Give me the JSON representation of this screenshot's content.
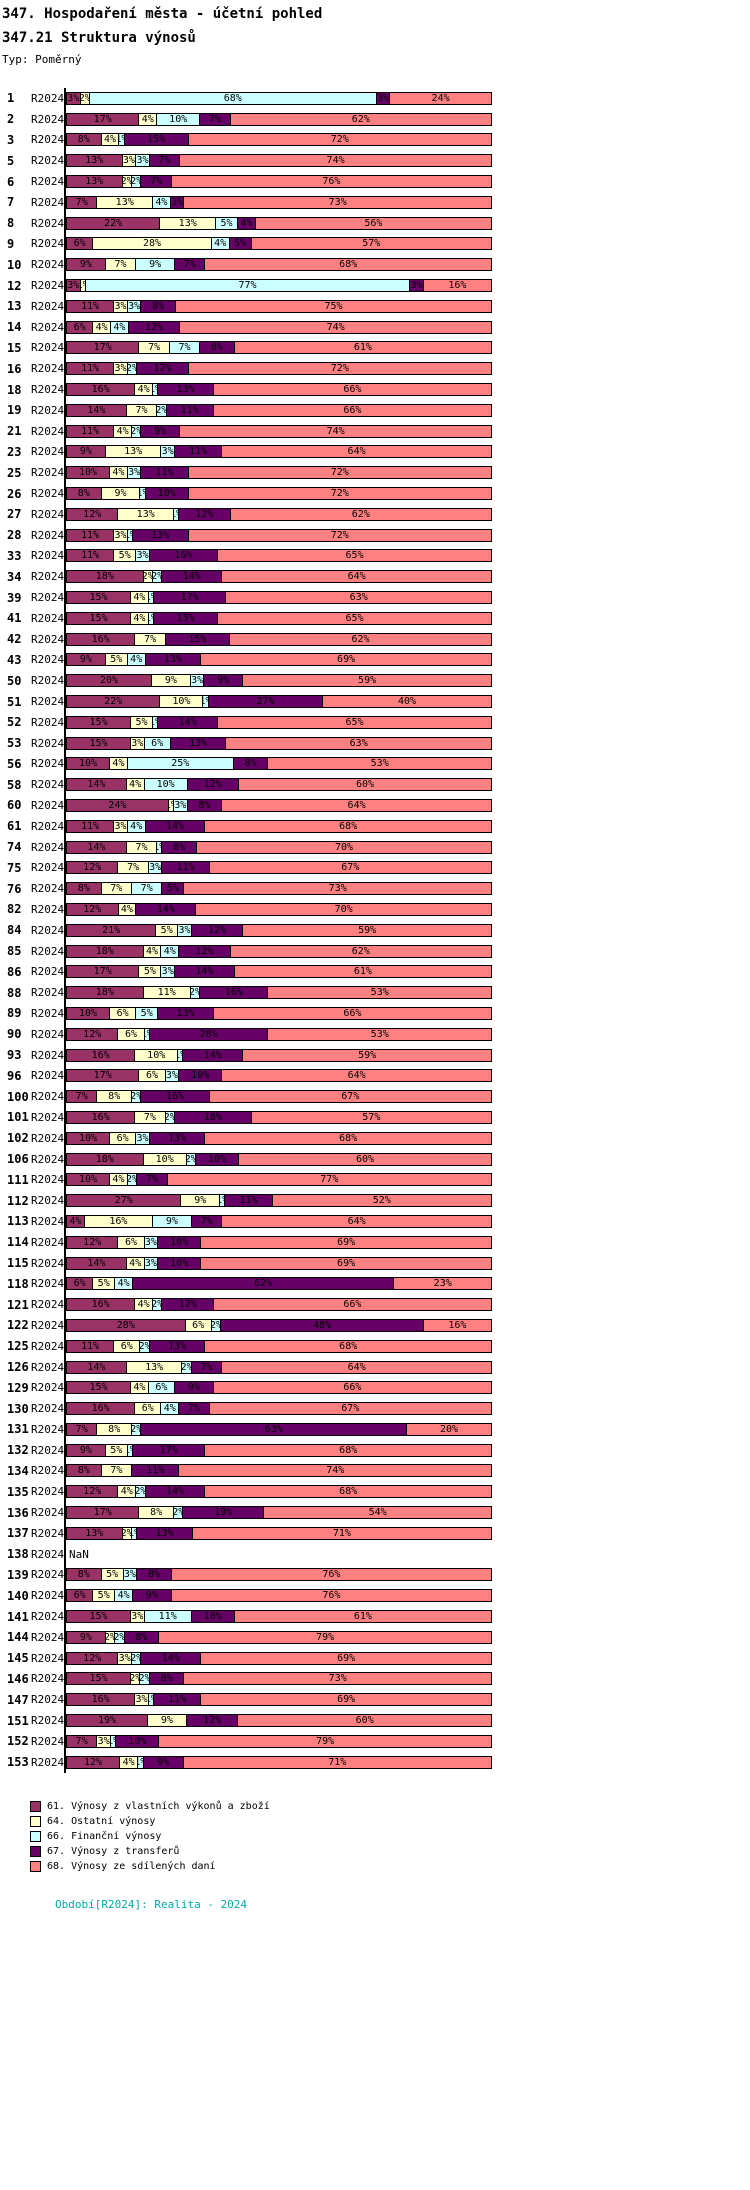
{
  "title": "347. Hospodaření města - účetní pohled",
  "subtitle": "347.21 Struktura výnosů",
  "type_label": "Typ: Poměrný",
  "footer": "Období[R2024]: Realita - 2024",
  "nan_label": "NaN",
  "chart_data": {
    "type": "bar",
    "orientation": "horizontal-stacked",
    "unit": "%",
    "period": "R2024",
    "grid": false,
    "legend_position": "bottom-left",
    "legend": [
      {
        "name": "61",
        "label": "61. Výnosy z vlastních výkonů a zboží",
        "color": "#993366"
      },
      {
        "name": "64",
        "label": "64. Ostatní výnosy",
        "color": "#FFFFCC"
      },
      {
        "name": "66",
        "label": "66. Finanční výnosy",
        "color": "#CCFFFF"
      },
      {
        "name": "67",
        "label": "67. Výnosy z transferů",
        "color": "#660066"
      },
      {
        "name": "68",
        "label": "68. Výnosy ze sdílených daní",
        "color": "#FF8080"
      }
    ],
    "rows": [
      {
        "id": "1",
        "period": "R2024",
        "values": [
          3,
          2,
          68,
          3,
          24
        ]
      },
      {
        "id": "2",
        "period": "R2024",
        "values": [
          17,
          4,
          10,
          7,
          62
        ]
      },
      {
        "id": "3",
        "period": "R2024",
        "values": [
          8,
          4,
          1,
          15,
          72
        ]
      },
      {
        "id": "5",
        "period": "R2024",
        "values": [
          13,
          3,
          3,
          7,
          74
        ]
      },
      {
        "id": "6",
        "period": "R2024",
        "values": [
          13,
          2,
          2,
          7,
          76
        ]
      },
      {
        "id": "7",
        "period": "R2024",
        "values": [
          7,
          13,
          4,
          3,
          73
        ]
      },
      {
        "id": "8",
        "period": "R2024",
        "values": [
          22,
          13,
          5,
          4,
          56
        ]
      },
      {
        "id": "9",
        "period": "R2024",
        "values": [
          6,
          28,
          4,
          5,
          57
        ]
      },
      {
        "id": "10",
        "period": "R2024",
        "values": [
          9,
          7,
          9,
          7,
          68
        ]
      },
      {
        "id": "12",
        "period": "R2024",
        "values": [
          3,
          1,
          77,
          3,
          16
        ]
      },
      {
        "id": "13",
        "period": "R2024",
        "values": [
          11,
          3,
          3,
          8,
          75
        ]
      },
      {
        "id": "14",
        "period": "R2024",
        "values": [
          6,
          4,
          4,
          12,
          74
        ]
      },
      {
        "id": "15",
        "period": "R2024",
        "values": [
          17,
          7,
          7,
          8,
          61
        ]
      },
      {
        "id": "16",
        "period": "R2024",
        "values": [
          11,
          3,
          2,
          12,
          72
        ]
      },
      {
        "id": "18",
        "period": "R2024",
        "values": [
          16,
          4,
          1,
          13,
          66
        ]
      },
      {
        "id": "19",
        "period": "R2024",
        "values": [
          14,
          7,
          2,
          11,
          66
        ]
      },
      {
        "id": "21",
        "period": "R2024",
        "values": [
          11,
          4,
          2,
          9,
          74
        ]
      },
      {
        "id": "23",
        "period": "R2024",
        "values": [
          9,
          13,
          3,
          11,
          64
        ]
      },
      {
        "id": "25",
        "period": "R2024",
        "values": [
          10,
          4,
          3,
          11,
          72
        ]
      },
      {
        "id": "26",
        "period": "R2024",
        "values": [
          8,
          9,
          1,
          10,
          72
        ]
      },
      {
        "id": "27",
        "period": "R2024",
        "values": [
          12,
          13,
          1,
          12,
          62
        ]
      },
      {
        "id": "28",
        "period": "R2024",
        "values": [
          11,
          3,
          1,
          13,
          72
        ]
      },
      {
        "id": "33",
        "period": "R2024",
        "values": [
          11,
          5,
          3,
          16,
          65
        ]
      },
      {
        "id": "34",
        "period": "R2024",
        "values": [
          18,
          2,
          2,
          14,
          64
        ]
      },
      {
        "id": "39",
        "period": "R2024",
        "values": [
          15,
          4,
          1,
          17,
          63
        ]
      },
      {
        "id": "41",
        "period": "R2024",
        "values": [
          15,
          4,
          1,
          15,
          65
        ]
      },
      {
        "id": "42",
        "period": "R2024",
        "values": [
          16,
          7,
          0,
          15,
          62
        ]
      },
      {
        "id": "43",
        "period": "R2024",
        "values": [
          9,
          5,
          4,
          13,
          69
        ]
      },
      {
        "id": "50",
        "period": "R2024",
        "values": [
          20,
          9,
          3,
          9,
          59
        ]
      },
      {
        "id": "51",
        "period": "R2024",
        "values": [
          22,
          10,
          1,
          27,
          40
        ]
      },
      {
        "id": "52",
        "period": "R2024",
        "values": [
          15,
          5,
          1,
          14,
          65
        ]
      },
      {
        "id": "53",
        "period": "R2024",
        "values": [
          15,
          3,
          6,
          13,
          63
        ]
      },
      {
        "id": "56",
        "period": "R2024",
        "values": [
          10,
          4,
          25,
          8,
          53
        ]
      },
      {
        "id": "58",
        "period": "R2024",
        "values": [
          14,
          4,
          10,
          12,
          60
        ]
      },
      {
        "id": "60",
        "period": "R2024",
        "values": [
          24,
          1,
          3,
          8,
          64
        ]
      },
      {
        "id": "61",
        "period": "R2024",
        "values": [
          11,
          3,
          4,
          14,
          68
        ]
      },
      {
        "id": "74",
        "period": "R2024",
        "values": [
          14,
          7,
          1,
          8,
          70
        ]
      },
      {
        "id": "75",
        "period": "R2024",
        "values": [
          12,
          7,
          3,
          11,
          67
        ]
      },
      {
        "id": "76",
        "period": "R2024",
        "values": [
          8,
          7,
          7,
          5,
          73
        ]
      },
      {
        "id": "82",
        "period": "R2024",
        "values": [
          12,
          4,
          0,
          14,
          70
        ]
      },
      {
        "id": "84",
        "period": "R2024",
        "values": [
          21,
          5,
          3,
          12,
          59
        ]
      },
      {
        "id": "85",
        "period": "R2024",
        "values": [
          18,
          4,
          4,
          12,
          62
        ]
      },
      {
        "id": "86",
        "period": "R2024",
        "values": [
          17,
          5,
          3,
          14,
          61
        ]
      },
      {
        "id": "88",
        "period": "R2024",
        "values": [
          18,
          11,
          2,
          16,
          53
        ]
      },
      {
        "id": "89",
        "period": "R2024",
        "values": [
          10,
          6,
          5,
          13,
          66
        ]
      },
      {
        "id": "90",
        "period": "R2024",
        "values": [
          12,
          6,
          1,
          28,
          53
        ]
      },
      {
        "id": "93",
        "period": "R2024",
        "values": [
          16,
          10,
          1,
          14,
          59
        ]
      },
      {
        "id": "96",
        "period": "R2024",
        "values": [
          17,
          6,
          3,
          10,
          64
        ]
      },
      {
        "id": "100",
        "period": "R2024",
        "values": [
          7,
          8,
          2,
          16,
          67
        ]
      },
      {
        "id": "101",
        "period": "R2024",
        "values": [
          16,
          7,
          2,
          18,
          57
        ]
      },
      {
        "id": "102",
        "period": "R2024",
        "values": [
          10,
          6,
          3,
          13,
          68
        ]
      },
      {
        "id": "106",
        "period": "R2024",
        "values": [
          18,
          10,
          2,
          10,
          60
        ]
      },
      {
        "id": "111",
        "period": "R2024",
        "values": [
          10,
          4,
          2,
          7,
          77
        ]
      },
      {
        "id": "112",
        "period": "R2024",
        "values": [
          27,
          9,
          1,
          11,
          52
        ]
      },
      {
        "id": "113",
        "period": "R2024",
        "values": [
          4,
          16,
          9,
          7,
          64
        ]
      },
      {
        "id": "114",
        "period": "R2024",
        "values": [
          12,
          6,
          3,
          10,
          69
        ]
      },
      {
        "id": "115",
        "period": "R2024",
        "values": [
          14,
          4,
          3,
          10,
          69
        ]
      },
      {
        "id": "118",
        "period": "R2024",
        "values": [
          6,
          5,
          4,
          62,
          23
        ]
      },
      {
        "id": "121",
        "period": "R2024",
        "values": [
          16,
          4,
          2,
          12,
          66
        ]
      },
      {
        "id": "122",
        "period": "R2024",
        "values": [
          28,
          6,
          2,
          48,
          16
        ]
      },
      {
        "id": "125",
        "period": "R2024",
        "values": [
          11,
          6,
          2,
          13,
          68
        ]
      },
      {
        "id": "126",
        "period": "R2024",
        "values": [
          14,
          13,
          2,
          7,
          64
        ]
      },
      {
        "id": "129",
        "period": "R2024",
        "values": [
          15,
          4,
          6,
          9,
          66
        ]
      },
      {
        "id": "130",
        "period": "R2024",
        "values": [
          16,
          6,
          4,
          7,
          67
        ]
      },
      {
        "id": "131",
        "period": "R2024",
        "values": [
          7,
          8,
          2,
          63,
          20
        ]
      },
      {
        "id": "132",
        "period": "R2024",
        "values": [
          9,
          5,
          1,
          17,
          68
        ]
      },
      {
        "id": "134",
        "period": "R2024",
        "values": [
          8,
          7,
          0,
          11,
          74
        ]
      },
      {
        "id": "135",
        "period": "R2024",
        "values": [
          12,
          4,
          2,
          14,
          68
        ]
      },
      {
        "id": "136",
        "period": "R2024",
        "values": [
          17,
          8,
          2,
          19,
          54
        ]
      },
      {
        "id": "137",
        "period": "R2024",
        "values": [
          13,
          2,
          1,
          13,
          71
        ]
      },
      {
        "id": "138",
        "period": "R2024",
        "values": null
      },
      {
        "id": "139",
        "period": "R2024",
        "values": [
          8,
          5,
          3,
          8,
          76
        ]
      },
      {
        "id": "140",
        "period": "R2024",
        "values": [
          6,
          5,
          4,
          9,
          76
        ]
      },
      {
        "id": "141",
        "period": "R2024",
        "values": [
          15,
          3,
          11,
          10,
          61
        ]
      },
      {
        "id": "144",
        "period": "R2024",
        "values": [
          9,
          2,
          2,
          8,
          79
        ]
      },
      {
        "id": "145",
        "period": "R2024",
        "values": [
          12,
          3,
          2,
          14,
          69
        ]
      },
      {
        "id": "146",
        "period": "R2024",
        "values": [
          15,
          2,
          2,
          8,
          73
        ]
      },
      {
        "id": "147",
        "period": "R2024",
        "values": [
          16,
          3,
          1,
          11,
          69
        ]
      },
      {
        "id": "151",
        "period": "R2024",
        "values": [
          19,
          9,
          0,
          12,
          60
        ]
      },
      {
        "id": "152",
        "period": "R2024",
        "values": [
          7,
          3,
          1,
          10,
          79
        ]
      },
      {
        "id": "153",
        "period": "R2024",
        "values": [
          12,
          4,
          1,
          9,
          71
        ]
      }
    ]
  }
}
